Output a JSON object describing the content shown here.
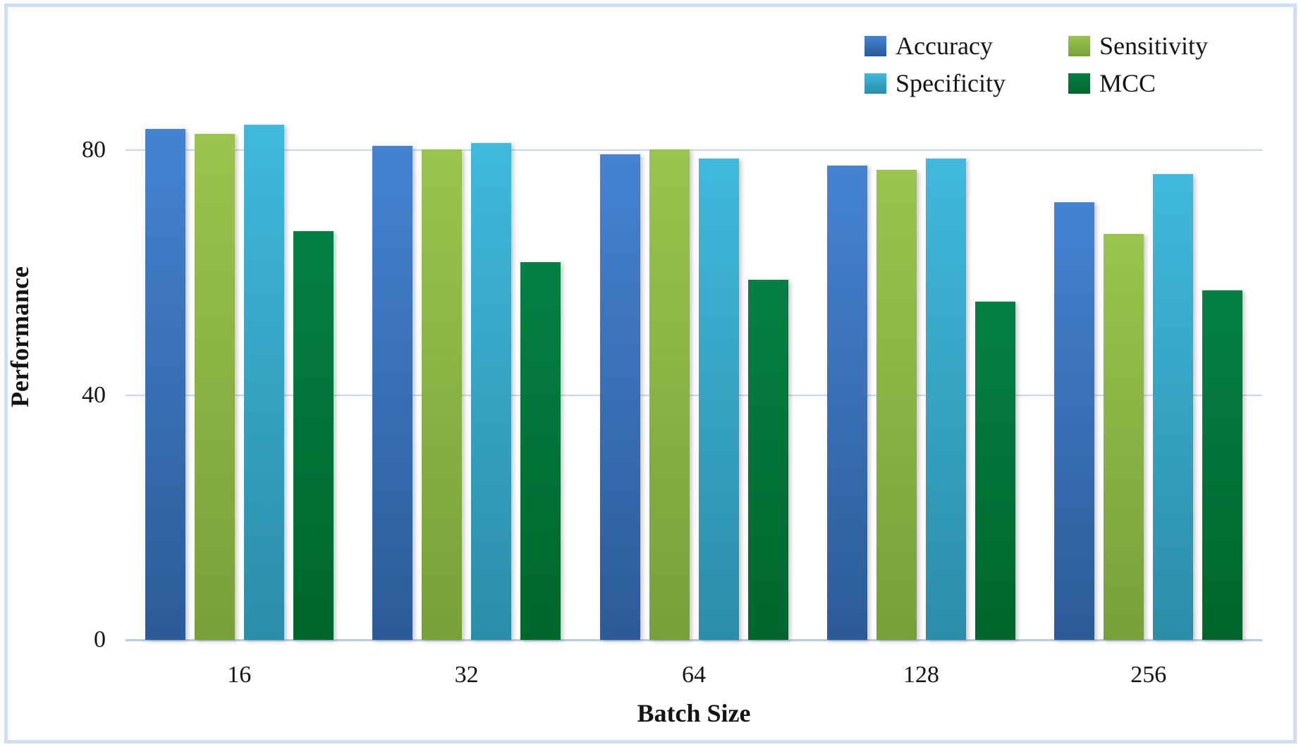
{
  "figure": {
    "background": "#ffffff",
    "border_color": "#cfdff1",
    "text_color": "#141414"
  },
  "chart_data": {
    "type": "bar",
    "title": "",
    "xlabel": "Batch Size",
    "ylabel": "Performance",
    "categories": [
      "16",
      "32",
      "64",
      "128",
      "256"
    ],
    "series": [
      {
        "name": "Accuracy",
        "color_top": "#4583d2",
        "color_bottom": "#2c5b97",
        "values": [
          83.4,
          80.7,
          79.3,
          77.5,
          71.5
        ]
      },
      {
        "name": "Sensitivity",
        "color_top": "#9ac44e",
        "color_bottom": "#78a039",
        "values": [
          82.6,
          80.1,
          80.1,
          76.8,
          66.3
        ]
      },
      {
        "name": "Specificity",
        "color_top": "#40b9dc",
        "color_bottom": "#2b8da8",
        "values": [
          84.1,
          81.2,
          78.6,
          78.6,
          76.1
        ]
      },
      {
        "name": "MCC",
        "color_top": "#058044",
        "color_bottom": "#00662c",
        "values": [
          66.8,
          61.7,
          58.8,
          55.2,
          57.1
        ]
      }
    ],
    "y_ticks": [
      0,
      40,
      80
    ],
    "ylim": [
      0,
      100
    ],
    "grid": "horizontal",
    "gridline_color": "#c9d7ec",
    "axisline_color": "#b9cce6",
    "legend_position": "top-right"
  }
}
